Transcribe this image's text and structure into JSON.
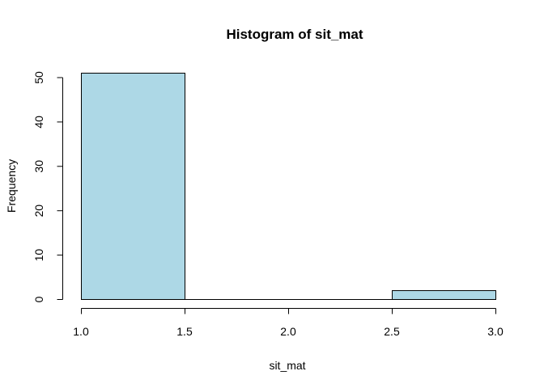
{
  "chart_data": {
    "type": "bar",
    "title": "Histogram of sit_mat",
    "xlabel": "sit_mat",
    "ylabel": "Frequency",
    "bins": [
      {
        "start": 1.0,
        "end": 1.5,
        "count": 51
      },
      {
        "start": 1.5,
        "end": 2.0,
        "count": 0
      },
      {
        "start": 2.0,
        "end": 2.5,
        "count": 0
      },
      {
        "start": 2.5,
        "end": 3.0,
        "count": 2
      }
    ],
    "xlim": [
      1.0,
      3.0
    ],
    "ylim": [
      0,
      50
    ],
    "x_ticks": [
      {
        "value": 1.0,
        "label": "1.0"
      },
      {
        "value": 1.5,
        "label": "1.5"
      },
      {
        "value": 2.0,
        "label": "2.0"
      },
      {
        "value": 2.5,
        "label": "2.5"
      },
      {
        "value": 3.0,
        "label": "3.0"
      }
    ],
    "y_ticks": [
      {
        "value": 0,
        "label": "0"
      },
      {
        "value": 10,
        "label": "10"
      },
      {
        "value": 20,
        "label": "20"
      },
      {
        "value": 30,
        "label": "30"
      },
      {
        "value": 40,
        "label": "40"
      },
      {
        "value": 50,
        "label": "50"
      }
    ],
    "bar_fill": "#add8e6",
    "grid": false,
    "legend": "none"
  }
}
